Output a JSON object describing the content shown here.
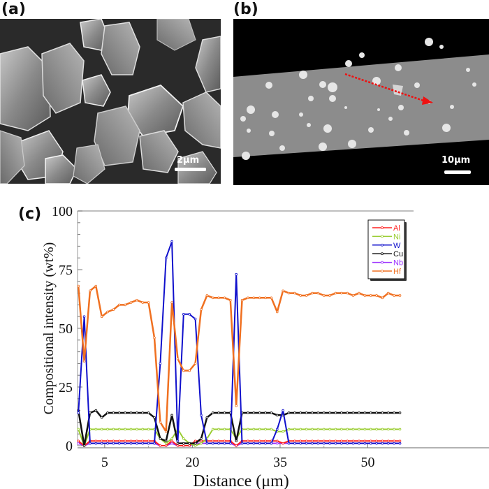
{
  "panels": {
    "a": {
      "label": "(a)",
      "scalebar": "2μm"
    },
    "b": {
      "label": "(b)",
      "scalebar": "10μm"
    },
    "c": {
      "label": "(c)"
    }
  },
  "colors": {
    "Al": "#ff2020",
    "Ni": "#9acd32",
    "W": "#1010cc",
    "Cu": "#111111",
    "Nb": "#9b30ff",
    "Hf": "#f07020",
    "arrow": "#ee1111"
  },
  "chart_data": {
    "type": "line",
    "title": "",
    "xlabel": "Distance (μm)",
    "ylabel": "Compositional intensity (wt%)",
    "xlim": [
      0,
      57
    ],
    "ylim": [
      0,
      100
    ],
    "xticks": [
      5,
      20,
      35,
      50
    ],
    "yticks": [
      0,
      25,
      50,
      75,
      100
    ],
    "grid": false,
    "legend_position": "upper right",
    "x": [
      0.5,
      1.5,
      2.5,
      3.5,
      4.5,
      5.5,
      6.5,
      7.5,
      8.5,
      9.5,
      10.5,
      11.5,
      12.5,
      13.5,
      14.5,
      15.5,
      16.5,
      17.5,
      18.5,
      19.5,
      20.5,
      21.5,
      22.5,
      23.5,
      24.5,
      25.5,
      26.5,
      27.5,
      28.5,
      29.5,
      30.5,
      31.5,
      32.5,
      33.5,
      34.5,
      35.5,
      36.5,
      37.5,
      38.5,
      39.5,
      40.5,
      41.5,
      42.5,
      43.5,
      44.5,
      45.5,
      46.5,
      47.5,
      48.5,
      49.5,
      50.5,
      51.5,
      52.5,
      53.5,
      54.5,
      55.5
    ],
    "series": [
      {
        "name": "Al",
        "values": [
          2,
          0,
          2,
          2,
          2,
          2,
          2,
          2,
          2,
          2,
          2,
          2,
          2,
          2,
          0,
          0,
          2,
          0,
          0,
          0,
          2,
          2,
          2,
          2,
          2,
          2,
          2,
          0,
          2,
          2,
          2,
          2,
          2,
          2,
          2,
          1,
          2,
          2,
          2,
          2,
          2,
          2,
          2,
          2,
          2,
          2,
          2,
          2,
          2,
          2,
          2,
          2,
          2,
          2,
          2,
          2
        ]
      },
      {
        "name": "Ni",
        "values": [
          7,
          0,
          7,
          7,
          7,
          7,
          7,
          7,
          7,
          7,
          7,
          7,
          7,
          7,
          3,
          1,
          3,
          7,
          3,
          1,
          0,
          1,
          3,
          7,
          7,
          7,
          7,
          3,
          7,
          7,
          7,
          7,
          7,
          7,
          6,
          6,
          7,
          7,
          7,
          7,
          7,
          7,
          7,
          7,
          7,
          7,
          7,
          7,
          7,
          7,
          7,
          7,
          7,
          7,
          7,
          7
        ]
      },
      {
        "name": "W",
        "values": [
          14,
          55,
          1,
          1,
          1,
          1,
          1,
          1,
          1,
          1,
          1,
          1,
          1,
          1,
          35,
          80,
          87,
          2,
          56,
          56,
          54,
          13,
          1,
          1,
          1,
          1,
          1,
          73,
          1,
          1,
          1,
          1,
          1,
          1,
          7,
          15,
          1,
          1,
          1,
          1,
          1,
          1,
          1,
          1,
          1,
          1,
          1,
          1,
          1,
          1,
          1,
          1,
          1,
          1,
          1,
          1
        ]
      },
      {
        "name": "Cu",
        "values": [
          15,
          0,
          14,
          15,
          12,
          14,
          14,
          14,
          14,
          14,
          14,
          14,
          14,
          12,
          3,
          2,
          13,
          1,
          1,
          1,
          1,
          3,
          12,
          14,
          14,
          14,
          14,
          2,
          14,
          14,
          14,
          14,
          14,
          14,
          13,
          13,
          14,
          14,
          14,
          14,
          14,
          14,
          14,
          14,
          14,
          14,
          14,
          14,
          14,
          14,
          14,
          14,
          14,
          14,
          14,
          14
        ]
      },
      {
        "name": "Nb",
        "values": [
          1,
          0,
          1,
          1,
          1,
          1,
          1,
          1,
          1,
          1,
          1,
          1,
          1,
          1,
          0,
          0,
          1,
          0,
          0,
          0,
          1,
          1,
          1,
          1,
          1,
          1,
          1,
          0,
          1,
          1,
          1,
          1,
          1,
          1,
          1,
          1,
          1,
          1,
          1,
          1,
          1,
          1,
          1,
          1,
          1,
          1,
          1,
          1,
          1,
          1,
          1,
          1,
          1,
          1,
          1,
          1
        ]
      },
      {
        "name": "Hf",
        "values": [
          68,
          36,
          66,
          68,
          55,
          57,
          58,
          60,
          60,
          61,
          62,
          61,
          61,
          46,
          10,
          6,
          61,
          37,
          32,
          32,
          35,
          58,
          64,
          63,
          63,
          63,
          62,
          17,
          62,
          63,
          63,
          63,
          63,
          63,
          57,
          66,
          65,
          65,
          64,
          64,
          65,
          65,
          64,
          64,
          65,
          65,
          65,
          64,
          65,
          64,
          64,
          64,
          63,
          65,
          64,
          64
        ]
      }
    ]
  }
}
